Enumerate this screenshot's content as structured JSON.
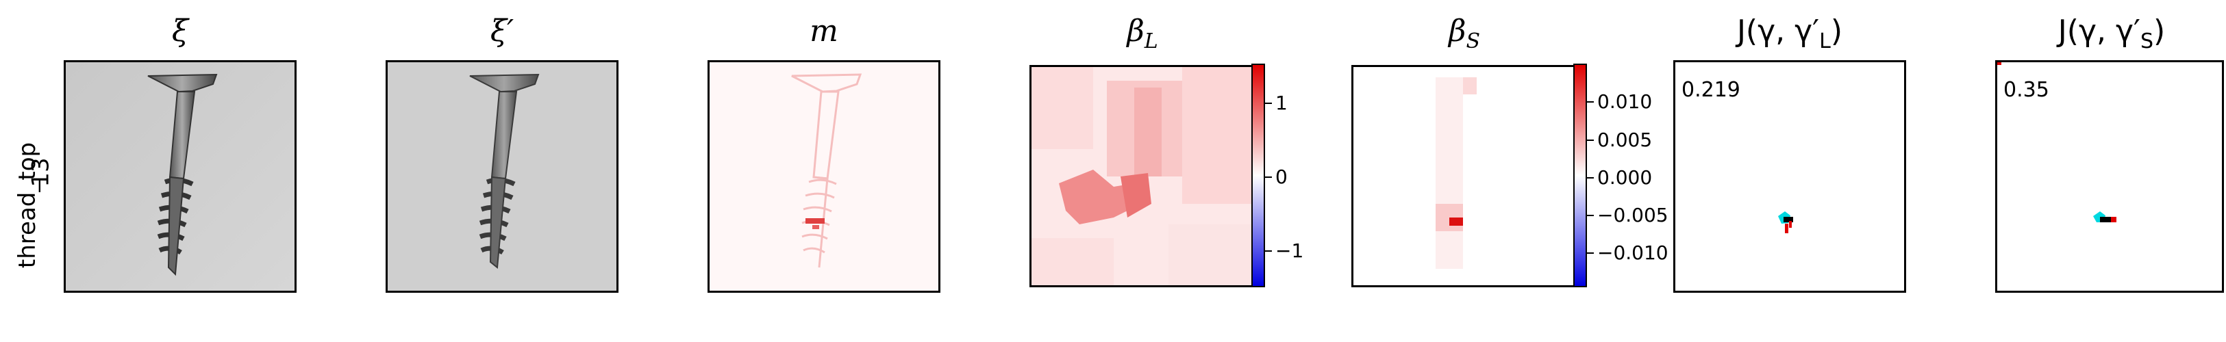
{
  "row_label": {
    "line1": "thread_top",
    "line2": "13"
  },
  "panels": [
    {
      "title": "ξ"
    },
    {
      "title": "ξ′"
    },
    {
      "title": "m"
    },
    {
      "title_main": "β",
      "title_sub": "L"
    },
    {
      "title_main": "β",
      "title_sub": "S"
    },
    {
      "title_prefix": "J(γ, γ′",
      "title_sub": "L",
      "title_suffix": ")",
      "score": "0.219"
    },
    {
      "title_prefix": "J(γ, γ′",
      "title_sub": "S",
      "title_suffix": ")",
      "score": "0.35"
    }
  ],
  "colorbar_L": {
    "ticks": [
      "1",
      "0",
      "−1"
    ]
  },
  "colorbar_S": {
    "ticks": [
      "0.010",
      "0.005",
      "0.000",
      "−0.005",
      "−0.010"
    ]
  },
  "colors": {
    "positive": "#e00000",
    "negative": "#0000e0",
    "mask": "#00d8e0"
  }
}
